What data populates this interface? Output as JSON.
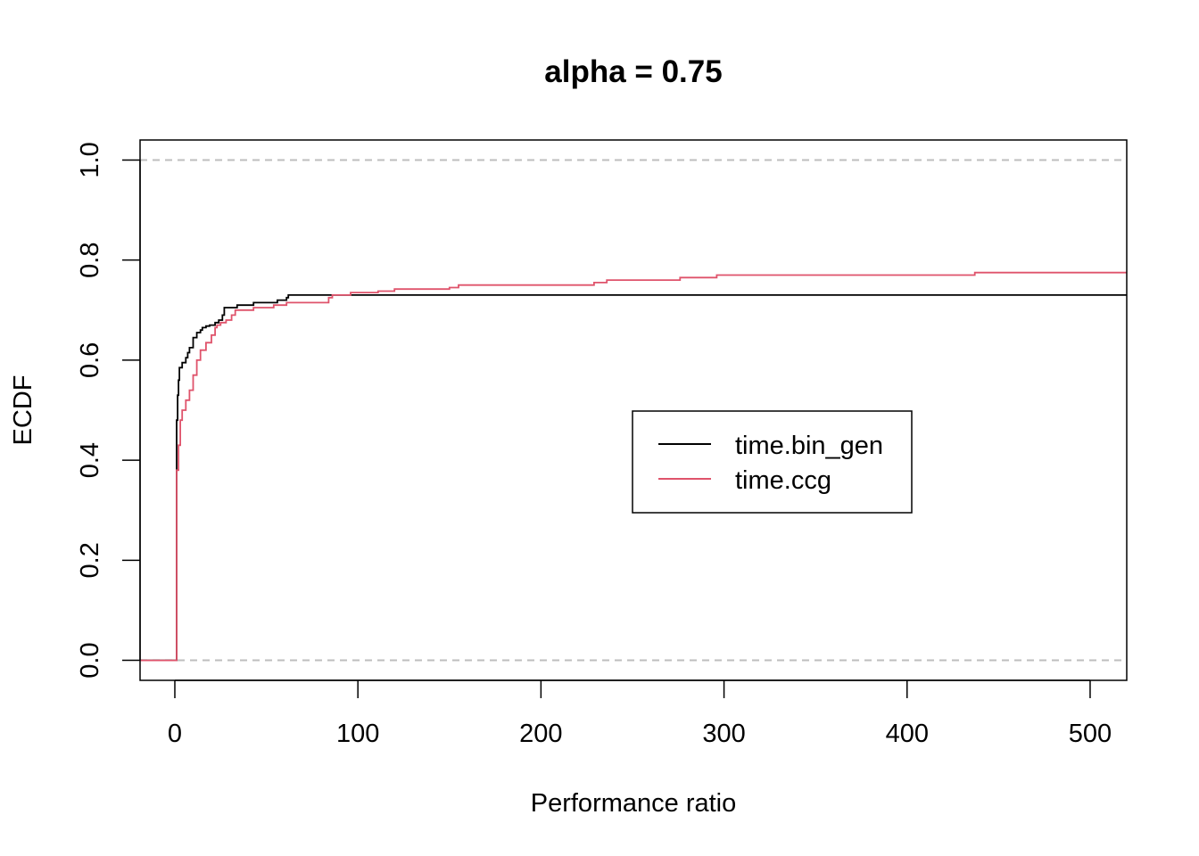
{
  "chart_data": {
    "type": "line",
    "title": "alpha = 0.75",
    "xlabel": "Performance ratio",
    "ylabel": "ECDF",
    "xlim": [
      -19,
      520
    ],
    "ylim": [
      -0.04,
      1.04
    ],
    "x_ticks": [
      0,
      100,
      200,
      300,
      400,
      500
    ],
    "x_tick_labels": [
      "0",
      "100",
      "200",
      "300",
      "400",
      "500"
    ],
    "y_ticks": [
      0.0,
      0.2,
      0.4,
      0.6,
      0.8,
      1.0
    ],
    "y_tick_labels": [
      "0.0",
      "0.2",
      "0.4",
      "0.6",
      "0.8",
      "1.0"
    ],
    "reference_lines": [
      0,
      1
    ],
    "grid": false,
    "legend": {
      "position": "center-right",
      "entries": [
        "time.bin_gen",
        "time.ccg"
      ]
    },
    "series": [
      {
        "name": "time.bin_gen",
        "color": "#000000",
        "points": [
          [
            -19,
            0
          ],
          [
            1,
            0
          ],
          [
            1,
            0.48
          ],
          [
            1.5,
            0.53
          ],
          [
            2,
            0.56
          ],
          [
            2.5,
            0.585
          ],
          [
            4,
            0.595
          ],
          [
            6,
            0.605
          ],
          [
            7,
            0.615
          ],
          [
            8,
            0.625
          ],
          [
            10,
            0.645
          ],
          [
            12,
            0.655
          ],
          [
            14,
            0.66
          ],
          [
            15,
            0.665
          ],
          [
            17,
            0.668
          ],
          [
            19,
            0.67
          ],
          [
            22,
            0.675
          ],
          [
            24,
            0.68
          ],
          [
            26,
            0.69
          ],
          [
            27,
            0.705
          ],
          [
            33,
            0.705
          ],
          [
            34,
            0.71
          ],
          [
            42,
            0.71
          ],
          [
            43,
            0.715
          ],
          [
            55,
            0.715
          ],
          [
            56,
            0.72
          ],
          [
            60,
            0.72
          ],
          [
            61,
            0.725
          ],
          [
            62,
            0.73
          ],
          [
            520,
            0.73
          ]
        ]
      },
      {
        "name": "time.ccg",
        "color": "#DF536B",
        "points": [
          [
            -19,
            0
          ],
          [
            1,
            0
          ],
          [
            1,
            0.38
          ],
          [
            2,
            0.43
          ],
          [
            3,
            0.48
          ],
          [
            4,
            0.5
          ],
          [
            6,
            0.52
          ],
          [
            8,
            0.54
          ],
          [
            10,
            0.57
          ],
          [
            12,
            0.6
          ],
          [
            14,
            0.62
          ],
          [
            17,
            0.635
          ],
          [
            20,
            0.65
          ],
          [
            22,
            0.665
          ],
          [
            23,
            0.67
          ],
          [
            25,
            0.675
          ],
          [
            28,
            0.68
          ],
          [
            31,
            0.69
          ],
          [
            33,
            0.7
          ],
          [
            42,
            0.7
          ],
          [
            43,
            0.705
          ],
          [
            53,
            0.705
          ],
          [
            54,
            0.71
          ],
          [
            60,
            0.71
          ],
          [
            61,
            0.715
          ],
          [
            83,
            0.715
          ],
          [
            84,
            0.725
          ],
          [
            86,
            0.73
          ],
          [
            95,
            0.73
          ],
          [
            96,
            0.735
          ],
          [
            110,
            0.735
          ],
          [
            111,
            0.738
          ],
          [
            119,
            0.738
          ],
          [
            120,
            0.742
          ],
          [
            149,
            0.742
          ],
          [
            150,
            0.745
          ],
          [
            154,
            0.745
          ],
          [
            155,
            0.75
          ],
          [
            228,
            0.75
          ],
          [
            229,
            0.755
          ],
          [
            235,
            0.755
          ],
          [
            236,
            0.76
          ],
          [
            275,
            0.76
          ],
          [
            276,
            0.765
          ],
          [
            295,
            0.765
          ],
          [
            296,
            0.77
          ],
          [
            436,
            0.77
          ],
          [
            437,
            0.775
          ],
          [
            520,
            0.775
          ]
        ]
      }
    ]
  }
}
